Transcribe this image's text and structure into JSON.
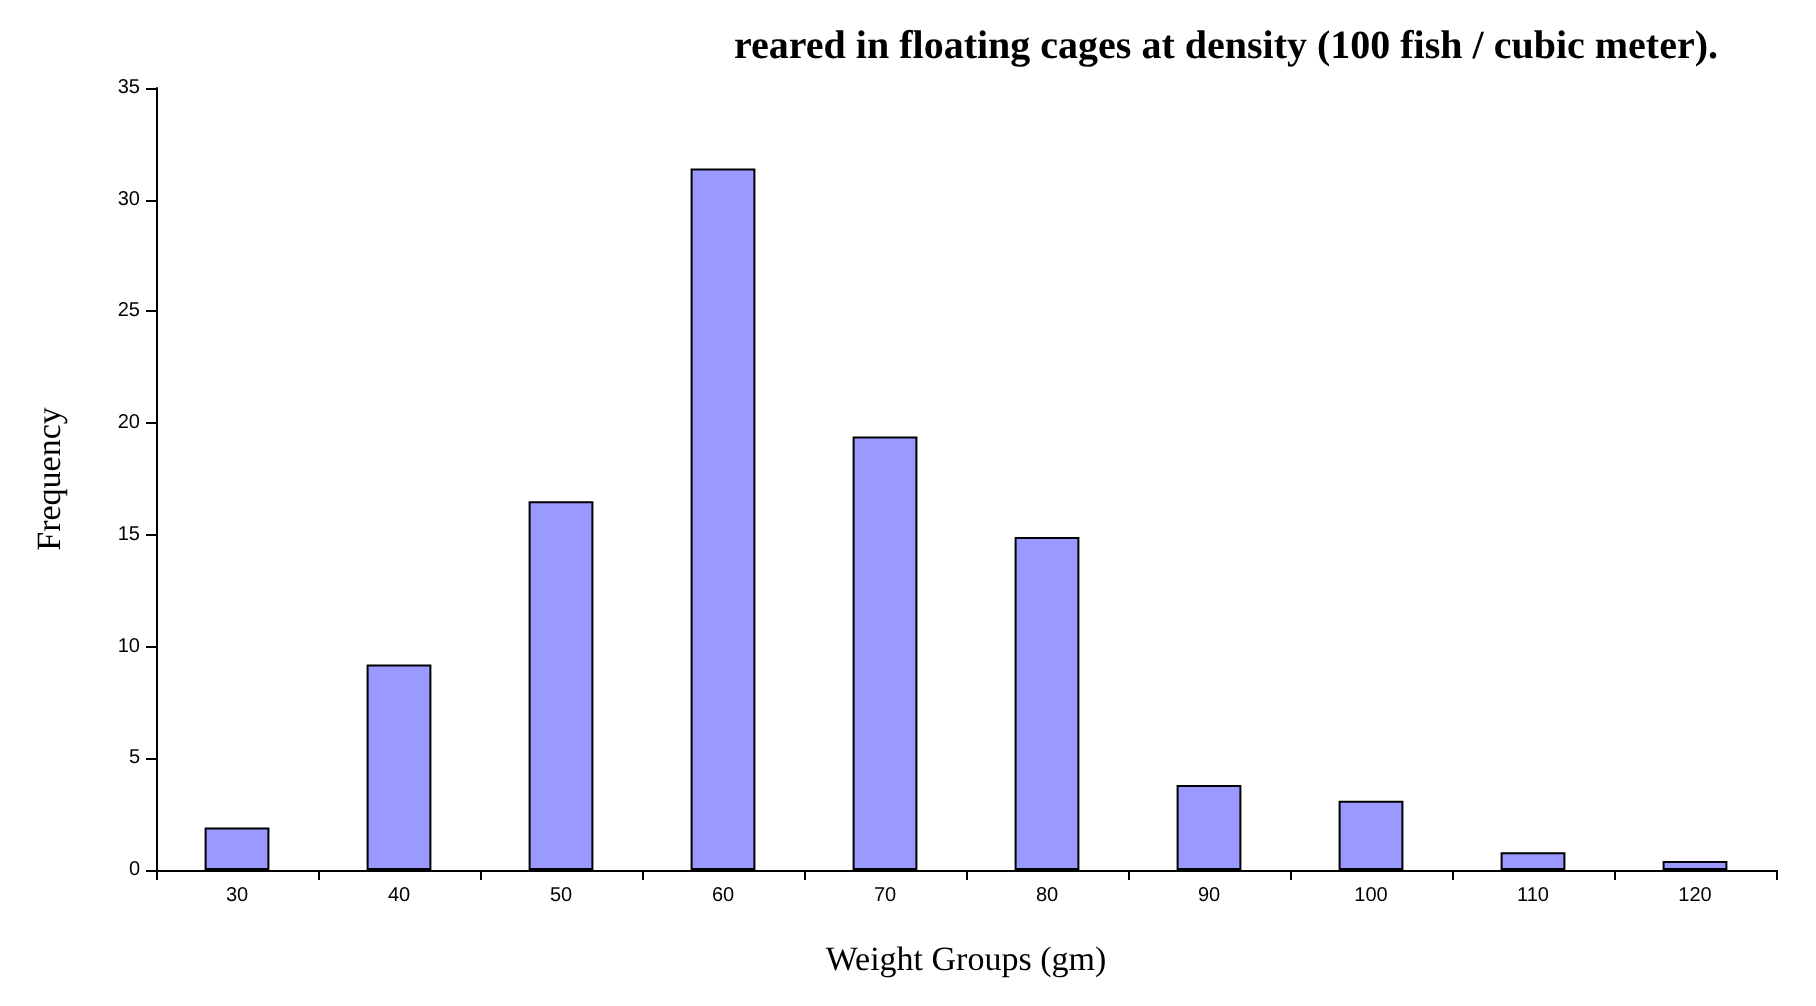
{
  "chart_data": {
    "type": "bar",
    "title": "reared in floating cages at density (100 fish / cubic meter).",
    "xlabel": "Weight Groups (gm)",
    "ylabel": "Frequency",
    "categories": [
      "30",
      "40",
      "50",
      "60",
      "70",
      "80",
      "90",
      "100",
      "110",
      "120"
    ],
    "values": [
      1.9,
      9.2,
      16.5,
      31.4,
      19.4,
      14.9,
      3.8,
      3.1,
      0.8,
      0.4
    ],
    "color": "#9999ff",
    "ylim": [
      0,
      35
    ],
    "yticks": [
      0,
      5,
      10,
      15,
      20,
      25,
      30,
      35
    ],
    "grid": false
  }
}
